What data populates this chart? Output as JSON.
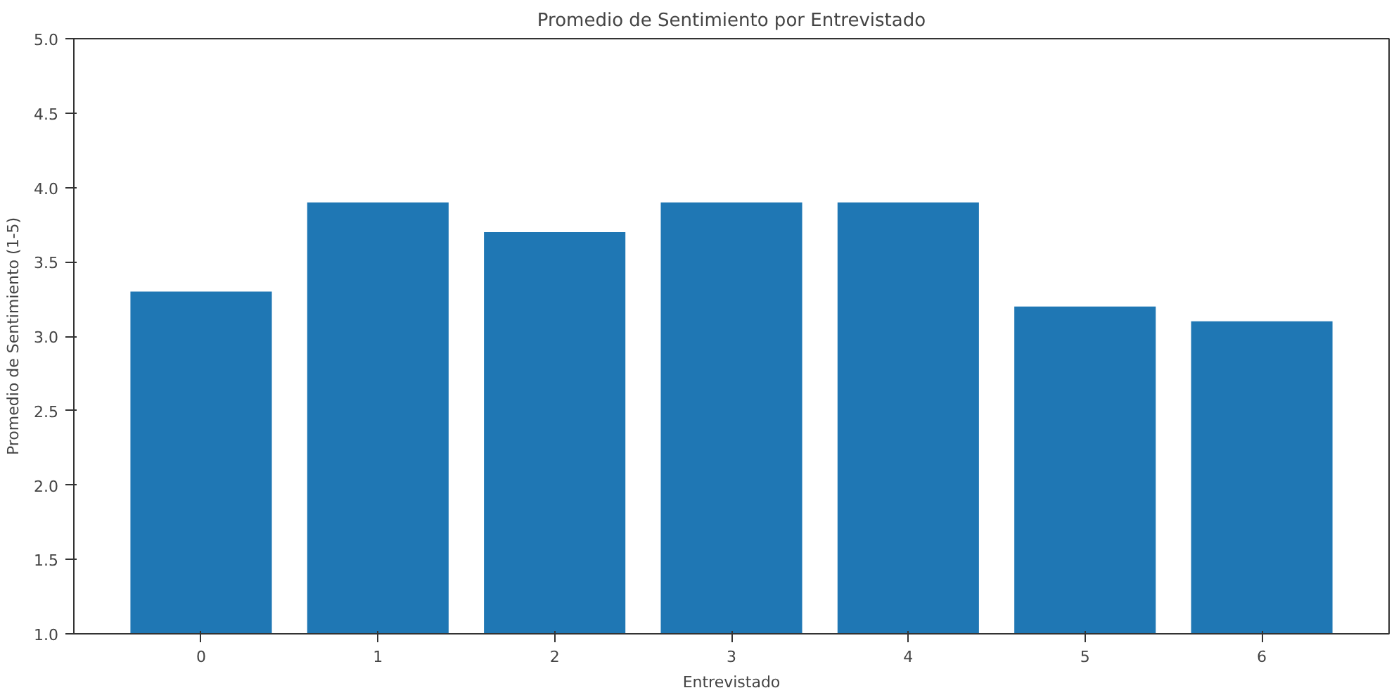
{
  "chart_data": {
    "type": "bar",
    "title": "Promedio de Sentimiento por Entrevistado",
    "xlabel": "Entrevistado",
    "ylabel": "Promedio de Sentimiento (1-5)",
    "categories": [
      "0",
      "1",
      "2",
      "3",
      "4",
      "5",
      "6"
    ],
    "values": [
      3.3,
      3.9,
      3.7,
      3.9,
      3.9,
      3.2,
      3.1
    ],
    "color": "#1f77b4",
    "ylim": [
      1.0,
      5.0
    ],
    "yticks": [
      {
        "value": 1.0,
        "label": "1.0"
      },
      {
        "value": 1.5,
        "label": "1.5"
      },
      {
        "value": 2.0,
        "label": "2.0"
      },
      {
        "value": 2.5,
        "label": "2.5"
      },
      {
        "value": 3.0,
        "label": "3.0"
      },
      {
        "value": 3.5,
        "label": "3.5"
      },
      {
        "value": 4.0,
        "label": "4.0"
      },
      {
        "value": 4.5,
        "label": "4.5"
      },
      {
        "value": 5.0,
        "label": "5.0"
      }
    ],
    "grid": false
  }
}
